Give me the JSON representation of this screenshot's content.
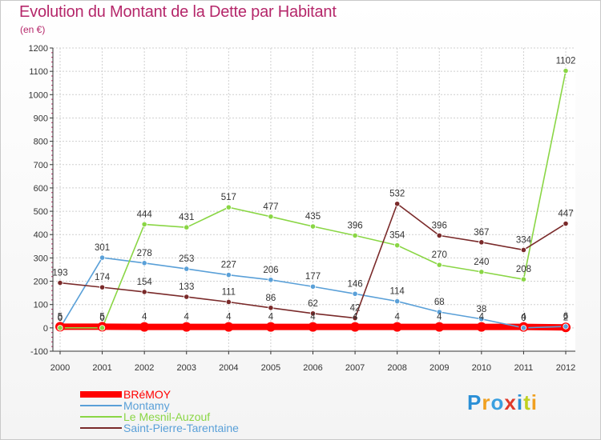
{
  "title": "Evolution du Montant de la Dette par Habitant",
  "subtitle": "(en €)",
  "logo": {
    "text": "Proxiti",
    "colors": [
      "#2a8fd6",
      "#f0a020",
      "#3aa0e0",
      "#e03a2a",
      "#2a8fd6",
      "#c0d020",
      "#f0a020"
    ]
  },
  "chart_data": {
    "type": "line",
    "x": [
      "2000",
      "2001",
      "2002",
      "2003",
      "2004",
      "2005",
      "2006",
      "2007",
      "2008",
      "2009",
      "2010",
      "2011",
      "2012"
    ],
    "ylim": [
      -100,
      1200
    ],
    "yticks": [
      "-100",
      "0",
      "100",
      "200",
      "300",
      "400",
      "500",
      "600",
      "700",
      "800",
      "900",
      "1000",
      "1100",
      "1200"
    ],
    "grid": true,
    "legend_position": "bottom-left",
    "series": [
      {
        "name": "BRéMOY",
        "color": "#ff0000",
        "values": [
          5,
          5,
          4,
          4,
          4,
          4,
          4,
          4,
          4,
          4,
          4,
          4,
          2
        ],
        "labels": [
          "5",
          "5",
          "4",
          "4",
          "4",
          "4",
          "4",
          "4",
          "4",
          "4",
          "4",
          "4",
          "2"
        ]
      },
      {
        "name": "Montamy",
        "color": "#5aa0d8",
        "values": [
          0,
          301,
          278,
          253,
          227,
          206,
          177,
          146,
          114,
          68,
          38,
          0,
          6
        ],
        "labels": [
          "0",
          "301",
          "278",
          "253",
          "227",
          "206",
          "177",
          "146",
          "114",
          "68",
          "38",
          "0",
          "6"
        ]
      },
      {
        "name": "Le Mesnil-Auzouf",
        "color": "#8ad645",
        "values": [
          0,
          0,
          444,
          431,
          517,
          477,
          435,
          396,
          354,
          270,
          240,
          208,
          1102
        ],
        "labels": [
          "0",
          "0",
          "444",
          "431",
          "517",
          "477",
          "435",
          "396",
          "354",
          "270",
          "240",
          "208",
          "1102"
        ]
      },
      {
        "name": "Saint-Pierre-Tarentaine",
        "color": "#7a2a2a",
        "values": [
          193,
          174,
          154,
          133,
          111,
          86,
          62,
          42,
          532,
          396,
          367,
          334,
          447
        ],
        "labels": [
          "193",
          "174",
          "154",
          "133",
          "111",
          "86",
          "62",
          "42",
          "532",
          "396",
          "367",
          "334",
          "447"
        ]
      }
    ]
  }
}
